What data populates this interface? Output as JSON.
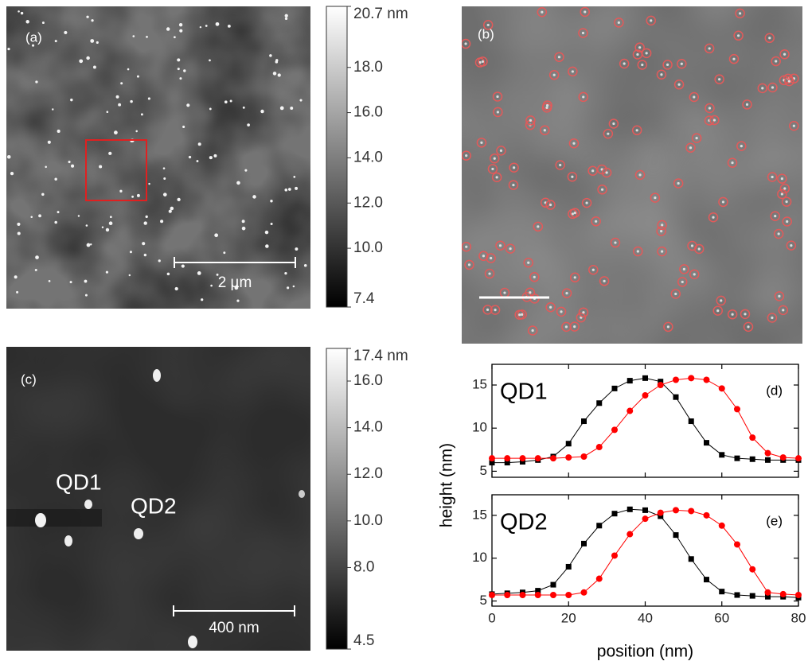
{
  "images": [
    {
      "label": "(a)",
      "scale_bar": "2 µm",
      "colorbar": {
        "lim": [
          7.4,
          20.7
        ],
        "ticks": [
          {
            "value": 20.7,
            "label": "20.7 nm"
          },
          {
            "value": 18,
            "label": "18.0"
          },
          {
            "value": 16,
            "label": "16.0"
          },
          {
            "value": 14,
            "label": "14.0"
          },
          {
            "value": 12,
            "label": "12.0"
          },
          {
            "value": 10,
            "label": "10.0"
          },
          7.4
        ]
      }
    },
    {
      "label": "(b)"
    },
    {
      "label": "(c)",
      "scale_bar": "400 nm",
      "annotations": [
        "QD1",
        "QD2"
      ],
      "colorbar": {
        "lim": [
          4.5,
          17.4
        ],
        "ticks": [
          {
            "value": 17.4,
            "label": "17.4 nm"
          },
          {
            "value": 16,
            "label": "16.0"
          },
          {
            "value": 14,
            "label": "14.0"
          },
          {
            "value": 12,
            "label": "12.0"
          },
          {
            "value": 10,
            "label": "10.0"
          },
          {
            "value": 8,
            "label": "8.0"
          },
          4.5
        ]
      }
    }
  ],
  "chart_data": [
    {
      "type": "line",
      "label": "(d)",
      "annotation": "QD1",
      "ylabel": "height (nm)",
      "x": [
        0,
        4,
        8,
        12,
        16,
        20,
        24,
        28,
        32,
        36,
        40,
        44,
        48,
        52,
        56,
        60,
        64,
        68,
        72,
        76,
        80
      ],
      "xlim": [
        0,
        80
      ],
      "xticks": [
        0,
        20,
        40,
        60,
        80
      ],
      "ylim": [
        4.3,
        17.4
      ],
      "yticks": [
        5,
        10,
        15
      ],
      "series": [
        {
          "color": "#000000",
          "marker": "square",
          "values": [
            6.0,
            6.0,
            6.1,
            6.3,
            6.7,
            8.2,
            10.8,
            12.9,
            14.6,
            15.5,
            15.8,
            15.4,
            13.6,
            10.8,
            8.3,
            6.9,
            6.5,
            6.4,
            6.3,
            6.3,
            6.3
          ]
        },
        {
          "color": "#ff0000",
          "marker": "circle",
          "values": [
            6.5,
            6.5,
            6.5,
            6.5,
            6.5,
            6.6,
            6.7,
            7.8,
            9.8,
            12.0,
            13.8,
            15.0,
            15.6,
            15.8,
            15.6,
            14.6,
            12.2,
            8.9,
            7.1,
            6.6,
            6.5
          ]
        }
      ]
    },
    {
      "type": "line",
      "label": "(e)",
      "annotation": "QD2",
      "xlabel": "position (nm)",
      "x": [
        0,
        4,
        8,
        12,
        16,
        20,
        24,
        28,
        32,
        36,
        40,
        44,
        48,
        52,
        56,
        60,
        64,
        68,
        72,
        76,
        80
      ],
      "xlim": [
        0,
        80
      ],
      "xticks": [
        0,
        20,
        40,
        60,
        80
      ],
      "ylim": [
        4.4,
        17.4
      ],
      "yticks": [
        5,
        10,
        15
      ],
      "series": [
        {
          "color": "#000000",
          "marker": "square",
          "values": [
            5.8,
            5.9,
            6.0,
            6.2,
            6.9,
            9.0,
            11.7,
            13.8,
            15.2,
            15.7,
            15.6,
            14.9,
            12.7,
            9.9,
            7.5,
            6.1,
            5.7,
            5.6,
            5.5,
            5.5,
            5.4
          ]
        },
        {
          "color": "#ff0000",
          "marker": "circle",
          "values": [
            5.7,
            5.7,
            5.7,
            5.7,
            5.7,
            5.7,
            6.0,
            7.6,
            10.3,
            12.8,
            14.6,
            15.3,
            15.6,
            15.5,
            15.0,
            13.8,
            11.6,
            8.7,
            6.0,
            5.8,
            5.7
          ]
        }
      ]
    }
  ]
}
